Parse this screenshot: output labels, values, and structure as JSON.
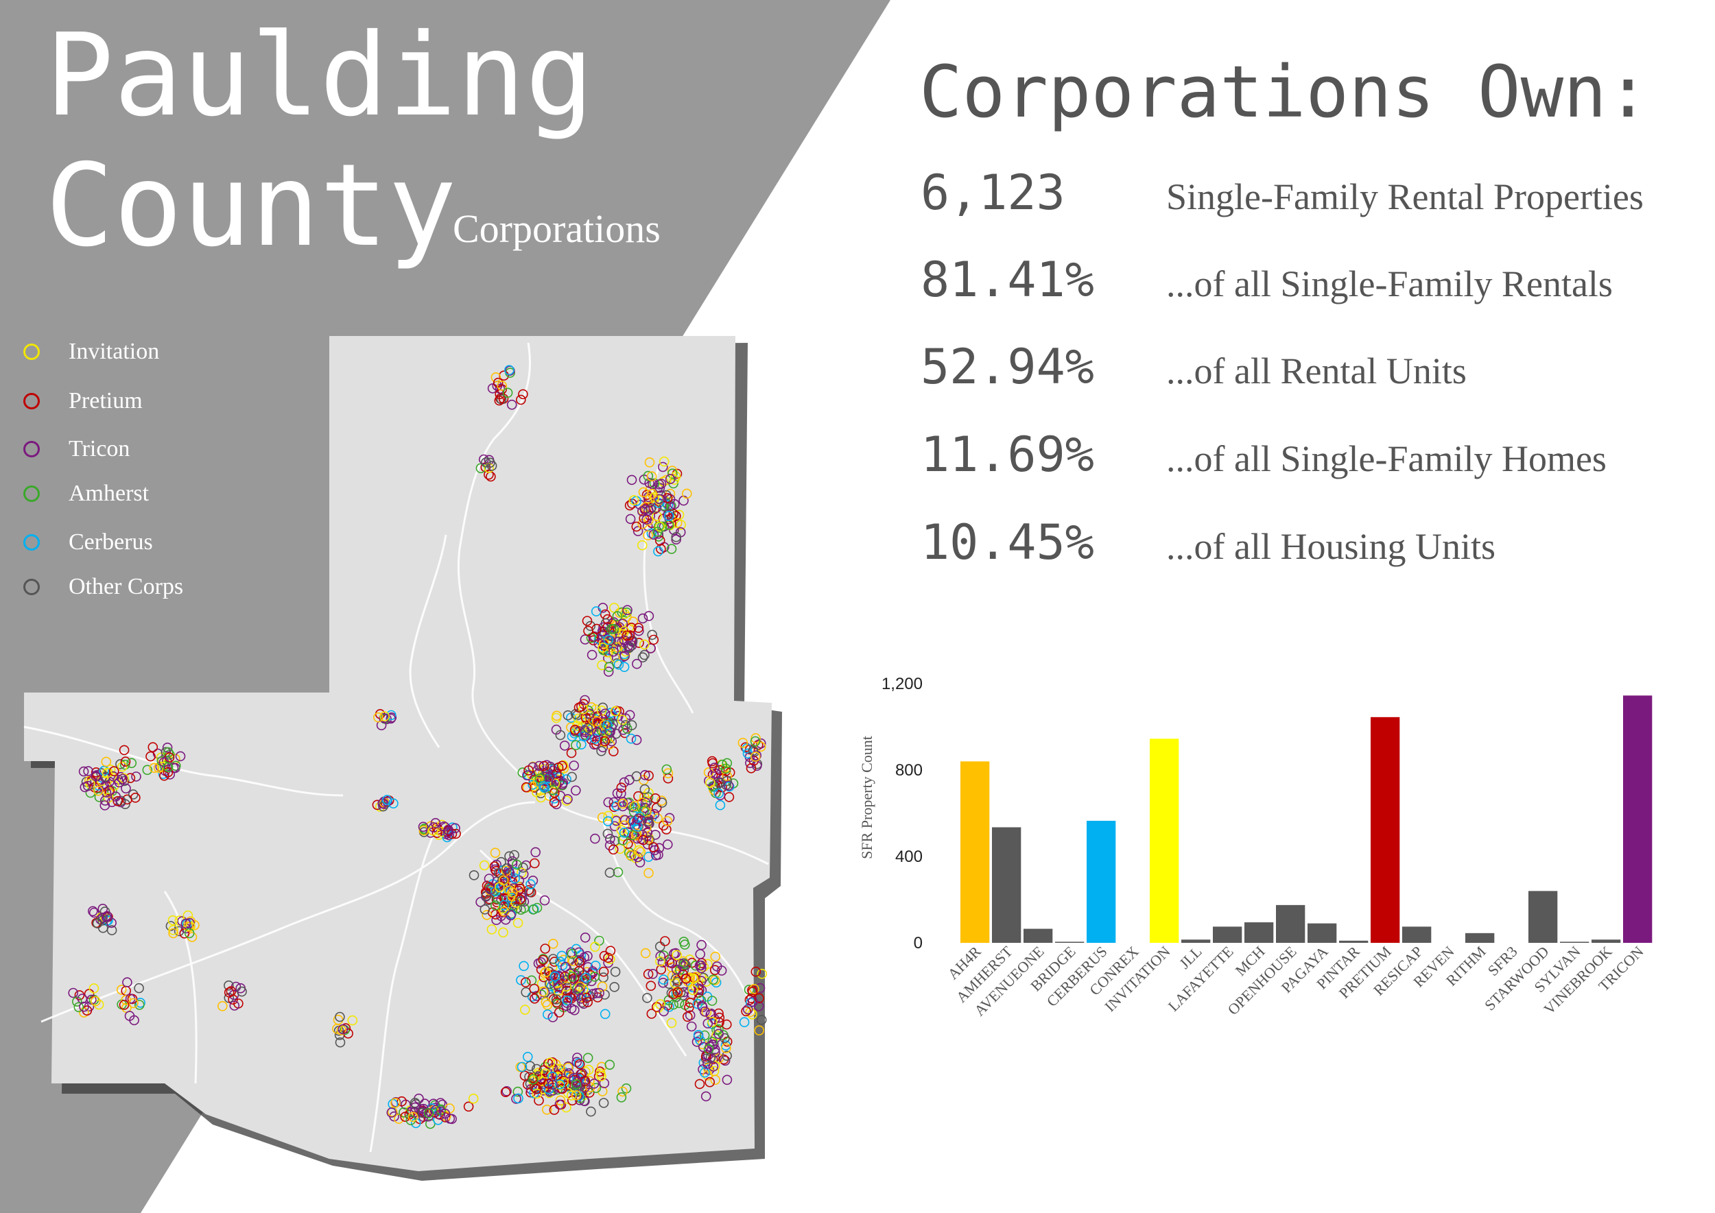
{
  "title": {
    "line1": "Paulding",
    "line2": "County",
    "subtitle": "Corporations"
  },
  "legend": [
    {
      "label": "Invitation",
      "color": "#f2e600",
      "icon": "circle-outline-icon"
    },
    {
      "label": "Pretium",
      "color": "#c00000",
      "icon": "circle-outline-icon"
    },
    {
      "label": "Tricon",
      "color": "#7b1a7e",
      "icon": "circle-outline-icon"
    },
    {
      "label": "Amherst",
      "color": "#3aa82a",
      "icon": "circle-outline-icon"
    },
    {
      "label": "Cerberus",
      "color": "#00b0f0",
      "icon": "circle-outline-icon"
    },
    {
      "label": "Other Corps",
      "color": "#555555",
      "icon": "circle-outline-icon"
    }
  ],
  "stats": {
    "heading": "Corporations Own:",
    "rows": [
      {
        "value": "6,123",
        "label": "Single-Family Rental Properties"
      },
      {
        "value": "81.41%",
        "label": "...of all Single-Family Rentals"
      },
      {
        "value": "52.94%",
        "label": "...of all Rental Units"
      },
      {
        "value": "11.69%",
        "label": "...of all Single-Family Homes"
      },
      {
        "value": "10.45%",
        "label": "...of all Housing Units"
      }
    ]
  },
  "colors": {
    "panel": "#999999",
    "map_fill": "#e0e0e0",
    "text_gray": "#555555"
  },
  "chart_data": {
    "type": "bar",
    "title": "",
    "xlabel": "",
    "ylabel": "SFR Property Count",
    "ylim": [
      0,
      1200
    ],
    "yticks": [
      0,
      400,
      800,
      1200
    ],
    "ytick_labels": [
      "0",
      "400",
      "800",
      "1,200"
    ],
    "grid": false,
    "categories": [
      "AH4R",
      "AMHERST",
      "AVENUEONE",
      "BRIDGE",
      "CERBERUS",
      "CONREX",
      "INVITATION",
      "JLL",
      "LAFAYETTE",
      "MCH",
      "OPENHOUSE",
      "PAGAYA",
      "PINTAR",
      "PRETIUM",
      "RESICAP",
      "REVEN",
      "RITHM",
      "SFR3",
      "STARWOOD",
      "SYLVAN",
      "VINEBROOK",
      "TRICON"
    ],
    "values": [
      840,
      535,
      65,
      5,
      565,
      0,
      945,
      15,
      75,
      95,
      175,
      90,
      10,
      1045,
      75,
      0,
      45,
      0,
      240,
      5,
      15,
      1145
    ],
    "bar_colors": [
      "#ffc000",
      "#595959",
      "#595959",
      "#595959",
      "#00b0f0",
      "#595959",
      "#ffff00",
      "#595959",
      "#595959",
      "#595959",
      "#595959",
      "#595959",
      "#595959",
      "#c00000",
      "#595959",
      "#595959",
      "#595959",
      "#595959",
      "#595959",
      "#595959",
      "#595959",
      "#7b1a7e"
    ]
  }
}
